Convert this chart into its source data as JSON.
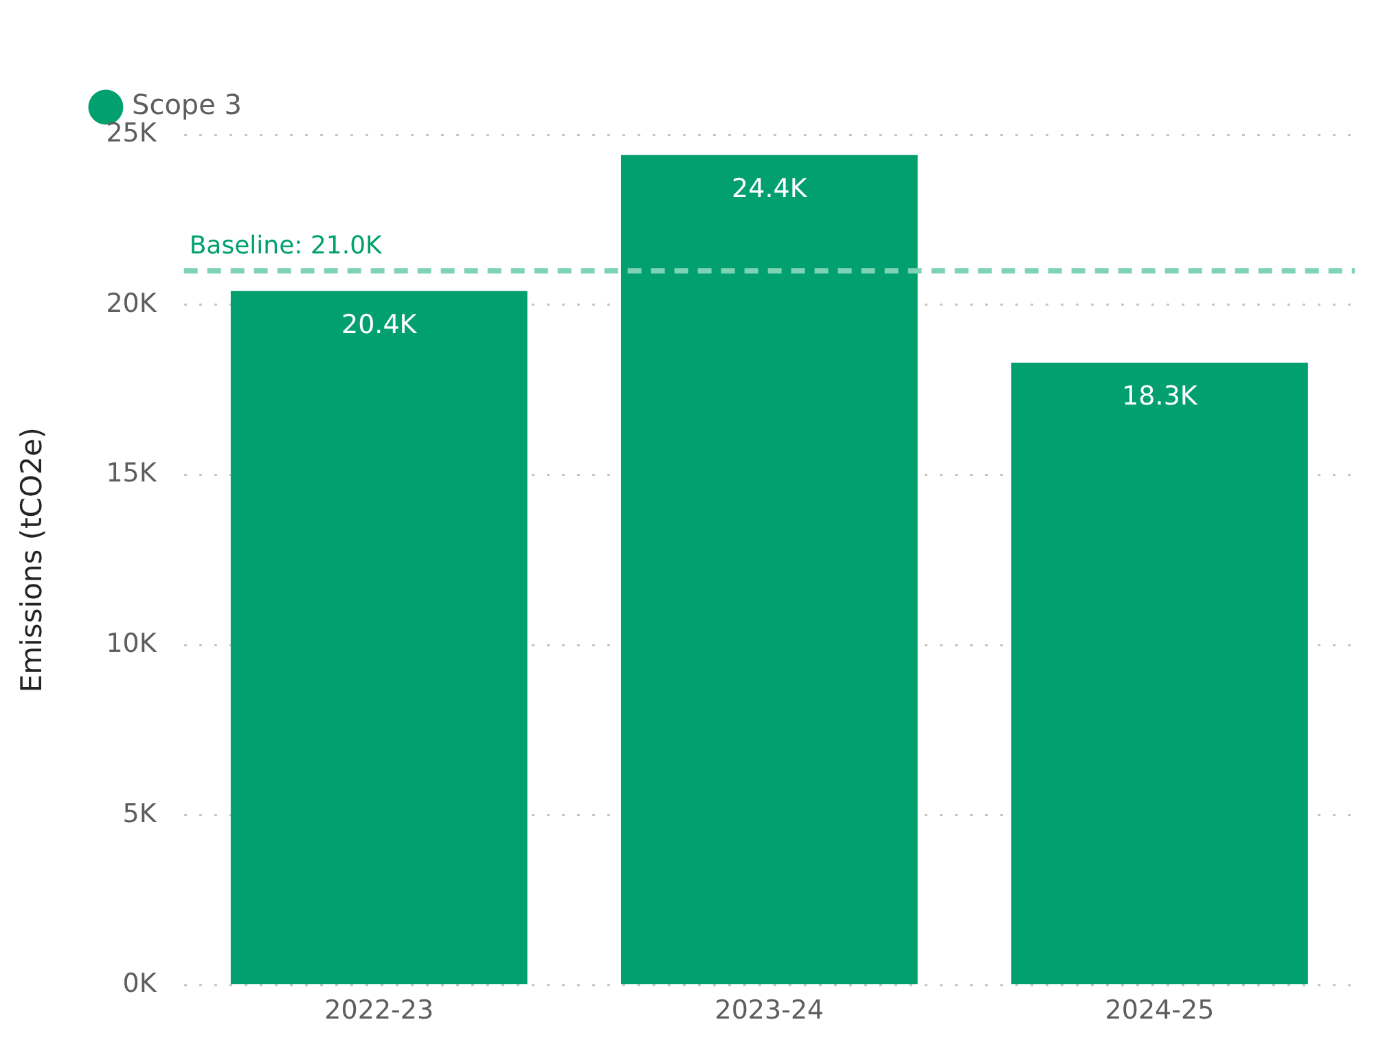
{
  "chart_data": {
    "type": "bar",
    "categories": [
      "2022-23",
      "2023-24",
      "2024-25"
    ],
    "series": [
      {
        "name": "Scope 3",
        "color": "#01a06e",
        "values": [
          20400,
          24400,
          18300
        ],
        "value_labels": [
          "20.4K",
          "24.4K",
          "18.3K"
        ]
      }
    ],
    "ylabel": "Emissions (tCO2e)",
    "ylim": [
      0,
      25000
    ],
    "yticks": [
      {
        "value": 0,
        "label": "0K"
      },
      {
        "value": 5000,
        "label": "5K"
      },
      {
        "value": 10000,
        "label": "10K"
      },
      {
        "value": 15000,
        "label": "15K"
      },
      {
        "value": 20000,
        "label": "20K"
      },
      {
        "value": 25000,
        "label": "25K"
      }
    ],
    "ref_lines": [
      {
        "axis": "y",
        "value": 21000,
        "label": "Baseline: 21.0K",
        "color": "#7fd3b5",
        "line_style": "dashed"
      }
    ],
    "grid": "y",
    "legend": "top left"
  }
}
